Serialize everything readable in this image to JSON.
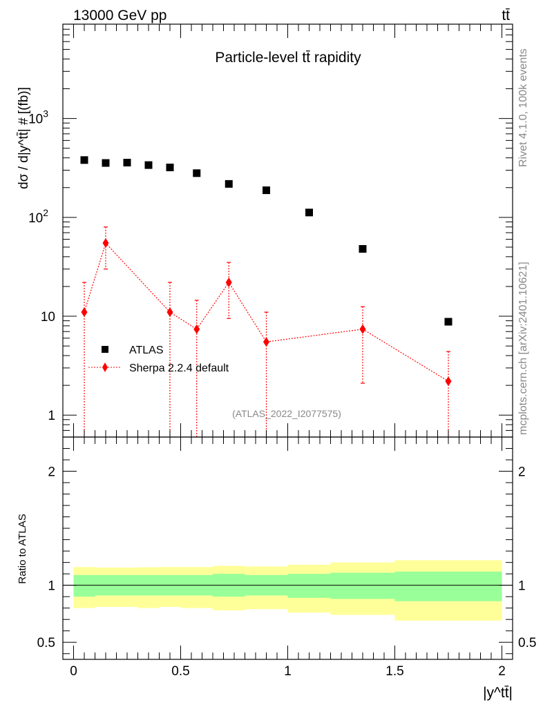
{
  "header": {
    "energy_label": "13000 GeV pp",
    "process_label": "tt̄"
  },
  "side_labels": {
    "rivet": "Rivet 4.1.0,  100k events",
    "mcplots": "mcplots.cern.ch [arXiv:2401.10621]"
  },
  "chart_data": {
    "type": "scatter",
    "title": "Particle-level tt̄ rapidity",
    "analysis_label": "(ATLAS_2022_I2077575)",
    "xlabel": "|y^tt̄|",
    "ylabel": "dσ / d|y^tt̄| # [(fb)]",
    "xlim": [
      -0.05,
      2.05
    ],
    "ylim": [
      0.6,
      9000
    ],
    "yscale": "log",
    "x_ticks": [
      {
        "value": 0,
        "label": "0"
      },
      {
        "value": 0.5,
        "label": "0.5"
      },
      {
        "value": 1,
        "label": "1"
      },
      {
        "value": 1.5,
        "label": "1.5"
      },
      {
        "value": 2,
        "label": "2"
      }
    ],
    "y_ticks": [
      {
        "value": 1,
        "label": "1"
      },
      {
        "value": 10,
        "label": "10"
      },
      {
        "value": 100,
        "label": "10",
        "exp": "2"
      },
      {
        "value": 1000,
        "label": "10",
        "exp": "3"
      }
    ],
    "series": [
      {
        "name": "ATLAS",
        "marker": "square",
        "color": "#000000",
        "x": [
          0.05,
          0.15,
          0.25,
          0.35,
          0.45,
          0.575,
          0.725,
          0.9,
          1.1,
          1.35,
          1.75
        ],
        "y": [
          380,
          355,
          358,
          338,
          320,
          280,
          218,
          188,
          112,
          48,
          8.8
        ]
      },
      {
        "name": "Sherpa 2.2.4 default",
        "marker": "diamond",
        "color": "#ff0000",
        "x": [
          0.05,
          0.15,
          0.45,
          0.575,
          0.725,
          0.9,
          1.35,
          1.75
        ],
        "y": [
          11,
          55,
          11,
          7.4,
          22,
          5.5,
          7.4,
          2.2
        ],
        "y_low": [
          0.1,
          30,
          0.1,
          0.1,
          9.5,
          0.1,
          2.1,
          0.1
        ],
        "y_high": [
          22,
          80,
          22,
          14.5,
          35,
          11,
          12.5,
          4.4
        ]
      }
    ],
    "ratio": {
      "ylabel": "Ratio to ATLAS",
      "ylim": [
        0.35,
        2.3
      ],
      "y_ticks": [
        {
          "value": 0.5,
          "label": "0.5"
        },
        {
          "value": 1,
          "label": "1"
        },
        {
          "value": 2,
          "label": "2"
        }
      ],
      "bins": [
        {
          "x_low": 0.0,
          "x_high": 0.1,
          "stat_low": 0.9,
          "stat_high": 1.09,
          "tot_low": 0.8,
          "tot_high": 1.16
        },
        {
          "x_low": 0.1,
          "x_high": 0.2,
          "stat_low": 0.91,
          "stat_high": 1.09,
          "tot_low": 0.81,
          "tot_high": 1.155
        },
        {
          "x_low": 0.2,
          "x_high": 0.3,
          "stat_low": 0.91,
          "stat_high": 1.09,
          "tot_low": 0.81,
          "tot_high": 1.155
        },
        {
          "x_low": 0.3,
          "x_high": 0.4,
          "stat_low": 0.91,
          "stat_high": 1.09,
          "tot_low": 0.8,
          "tot_high": 1.158
        },
        {
          "x_low": 0.4,
          "x_high": 0.5,
          "stat_low": 0.91,
          "stat_high": 1.09,
          "tot_low": 0.81,
          "tot_high": 1.16
        },
        {
          "x_low": 0.5,
          "x_high": 0.65,
          "stat_low": 0.91,
          "stat_high": 1.09,
          "tot_low": 0.8,
          "tot_high": 1.16
        },
        {
          "x_low": 0.65,
          "x_high": 0.8,
          "stat_low": 0.9,
          "stat_high": 1.1,
          "tot_low": 0.78,
          "tot_high": 1.17
        },
        {
          "x_low": 0.8,
          "x_high": 1.0,
          "stat_low": 0.91,
          "stat_high": 1.09,
          "tot_low": 0.79,
          "tot_high": 1.165
        },
        {
          "x_low": 1.0,
          "x_high": 1.2,
          "stat_low": 0.89,
          "stat_high": 1.1,
          "tot_low": 0.76,
          "tot_high": 1.18
        },
        {
          "x_low": 1.2,
          "x_high": 1.5,
          "stat_low": 0.88,
          "stat_high": 1.11,
          "tot_low": 0.74,
          "tot_high": 1.2
        },
        {
          "x_low": 1.5,
          "x_high": 2.0,
          "stat_low": 0.86,
          "stat_high": 1.12,
          "tot_low": 0.69,
          "tot_high": 1.22
        }
      ],
      "stat_color": "#99ff99",
      "total_color": "#ffff99"
    }
  }
}
